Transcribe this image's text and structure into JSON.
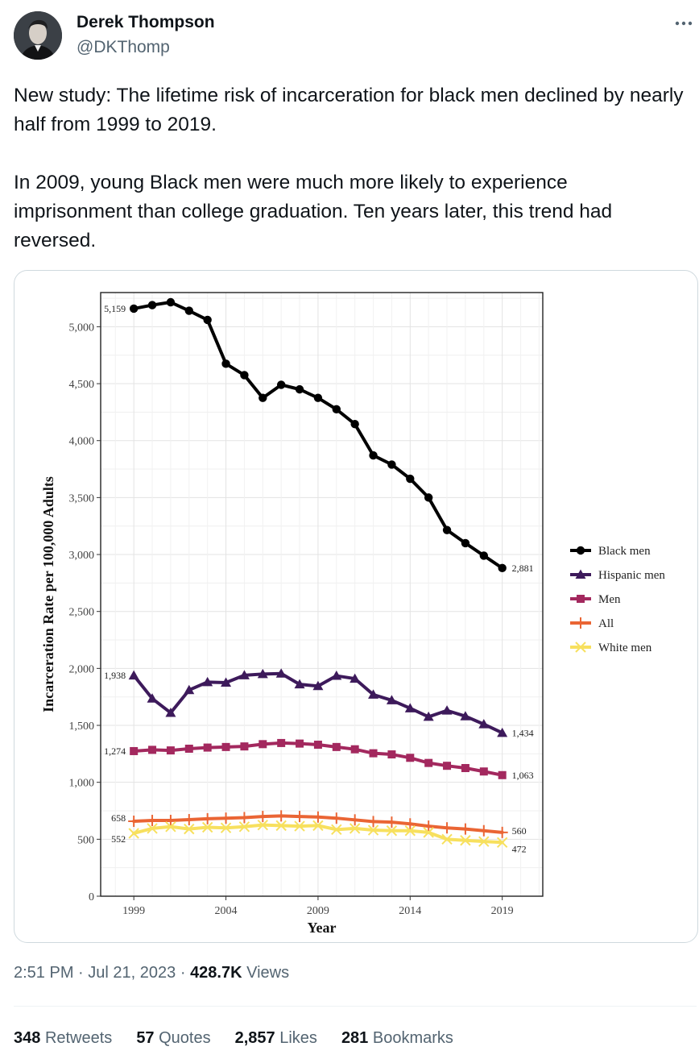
{
  "author": {
    "name": "Derek Thompson",
    "handle": "@DKThomp"
  },
  "tweet": {
    "paragraphs": [
      "New study: The lifetime risk of incarceration for black men declined by nearly half from 1999 to 2019.",
      "In 2009, young Black men were much more likely to experience imprisonment than college graduation. Ten years later, this trend had reversed."
    ]
  },
  "meta": {
    "time": "2:51 PM",
    "separator": "·",
    "date": "Jul 21, 2023",
    "views_count": "428.7K",
    "views_label": "Views"
  },
  "stats": [
    {
      "count": "348",
      "label": "Retweets"
    },
    {
      "count": "57",
      "label": "Quotes"
    },
    {
      "count": "2,857",
      "label": "Likes"
    },
    {
      "count": "281",
      "label": "Bookmarks"
    }
  ],
  "icons": {
    "more": "more-horizontal-icon",
    "avatar": "profile-photo"
  },
  "chart_data": {
    "type": "line",
    "xlabel": "Year",
    "ylabel": "Incarceration Rate per 100,000 Adults",
    "xlim": [
      1997.2,
      2021.2
    ],
    "ylim": [
      0,
      5300
    ],
    "x_ticks": [
      1999,
      2004,
      2009,
      2014,
      2019
    ],
    "y_ticks": [
      0,
      500,
      1000,
      1500,
      2000,
      2500,
      3000,
      3500,
      4000,
      4500,
      5000
    ],
    "y_tick_labels": [
      "0",
      "500",
      "1,000",
      "1,500",
      "2,000",
      "2,500",
      "3,000",
      "3,500",
      "4,000",
      "4,500",
      "5,000"
    ],
    "grid": true,
    "legend_position": "right",
    "x": [
      1999,
      2000,
      2001,
      2002,
      2003,
      2004,
      2005,
      2006,
      2007,
      2008,
      2009,
      2010,
      2011,
      2012,
      2013,
      2014,
      2015,
      2016,
      2017,
      2018,
      2019
    ],
    "series": [
      {
        "name": "Black men",
        "color": "#000000",
        "marker": "circle",
        "values": [
          5159,
          5190,
          5215,
          5140,
          5060,
          4675,
          4575,
          4375,
          4490,
          4450,
          4375,
          4275,
          4145,
          3870,
          3790,
          3665,
          3500,
          3215,
          3100,
          2990,
          2881
        ],
        "start_label": "5,159",
        "end_label": "2,881"
      },
      {
        "name": "Hispanic men",
        "color": "#3d1a5b",
        "marker": "triangle",
        "values": [
          1938,
          1735,
          1610,
          1810,
          1880,
          1875,
          1940,
          1950,
          1955,
          1860,
          1845,
          1935,
          1910,
          1770,
          1720,
          1650,
          1575,
          1630,
          1580,
          1510,
          1434
        ],
        "start_label": "1,938",
        "end_label": "1,434"
      },
      {
        "name": "Men",
        "color": "#a3285e",
        "marker": "square",
        "values": [
          1274,
          1285,
          1280,
          1295,
          1305,
          1310,
          1315,
          1335,
          1345,
          1340,
          1330,
          1310,
          1290,
          1255,
          1245,
          1215,
          1170,
          1145,
          1125,
          1095,
          1063
        ],
        "start_label": "1,274",
        "end_label": "1,063"
      },
      {
        "name": "All",
        "color": "#ea6534",
        "marker": "plus",
        "values": [
          658,
          665,
          665,
          672,
          680,
          685,
          690,
          700,
          705,
          700,
          695,
          685,
          670,
          655,
          650,
          635,
          615,
          600,
          590,
          575,
          560
        ],
        "start_label": "658",
        "end_label": "560"
      },
      {
        "name": "White men",
        "color": "#f7e05e",
        "marker": "x",
        "values": [
          552,
          595,
          610,
          590,
          605,
          600,
          610,
          625,
          620,
          615,
          620,
          585,
          595,
          580,
          575,
          575,
          560,
          500,
          490,
          480,
          472
        ],
        "start_label": "552",
        "end_label": "472"
      }
    ]
  }
}
